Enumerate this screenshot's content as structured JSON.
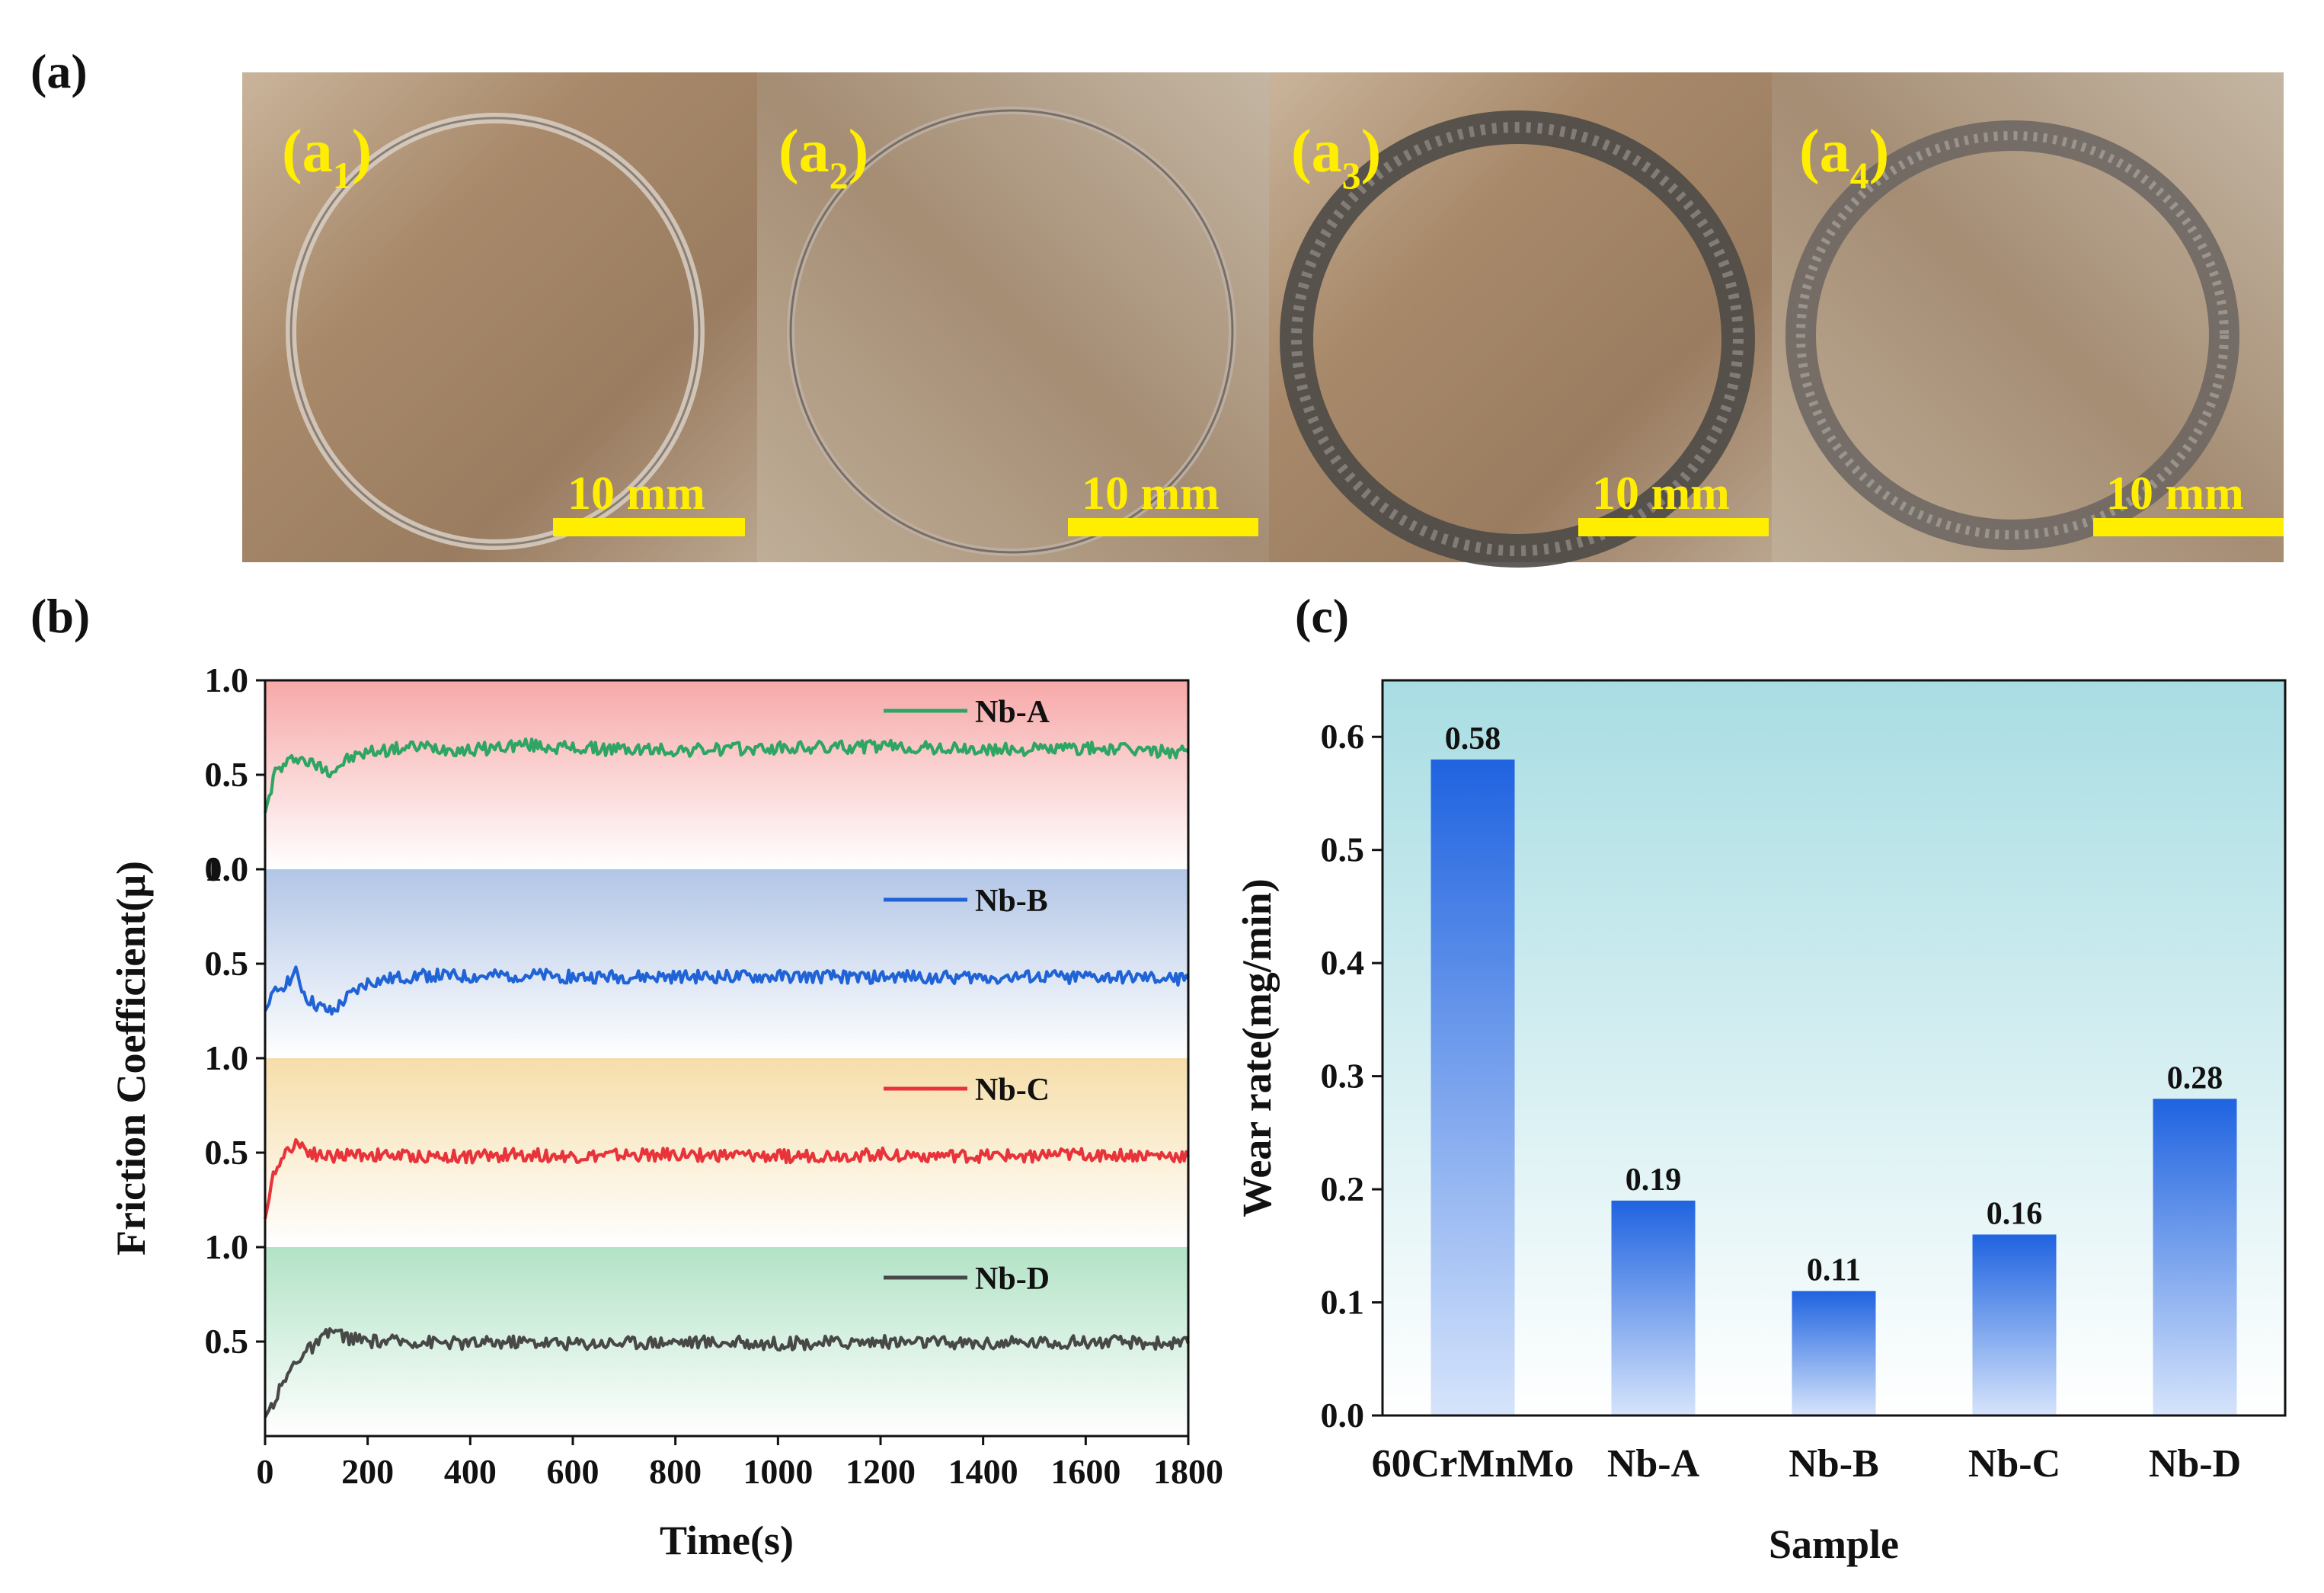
{
  "panels": {
    "a": {
      "letter": "(a)",
      "images": [
        {
          "label": "(a",
          "sub": "1",
          "close": ")",
          "scale": "10 mm",
          "ring": "thin"
        },
        {
          "label": "(a",
          "sub": "2",
          "close": ")",
          "scale": "10 mm",
          "ring": "thin"
        },
        {
          "label": "(a",
          "sub": "3",
          "close": ")",
          "scale": "10 mm",
          "ring": "thick"
        },
        {
          "label": "(a",
          "sub": "4",
          "close": ")",
          "scale": "10 mm",
          "ring": "thick"
        }
      ]
    },
    "b": {
      "letter": "(b)"
    },
    "c": {
      "letter": "(c)"
    }
  },
  "chart_data": [
    {
      "type": "line",
      "xlabel": "Time(s)",
      "ylabel": "Friction Coefficient(μ)",
      "xlim": [
        0,
        1800
      ],
      "xticks": [
        "0",
        "200",
        "400",
        "600",
        "800",
        "1000",
        "1200",
        "1400",
        "1600",
        "1800"
      ],
      "yticks": [
        "0.0",
        "0.5",
        "1.0"
      ],
      "band_ylim": [
        0,
        1.0
      ],
      "series": [
        {
          "name": "Nb-A",
          "color": "#2ea563",
          "band_color": "#f7a8a8",
          "x": [
            0,
            20,
            40,
            60,
            80,
            100,
            130,
            160,
            200,
            300,
            400,
            500,
            600,
            800,
            1000,
            1200,
            1400,
            1600,
            1800
          ],
          "y": [
            0.3,
            0.52,
            0.55,
            0.6,
            0.57,
            0.55,
            0.52,
            0.58,
            0.62,
            0.65,
            0.63,
            0.66,
            0.64,
            0.63,
            0.64,
            0.65,
            0.63,
            0.64,
            0.62
          ]
        },
        {
          "name": "Nb-B",
          "color": "#1f63d6",
          "band_color": "#b2c6e6",
          "x": [
            0,
            20,
            40,
            60,
            80,
            100,
            130,
            160,
            200,
            300,
            400,
            500,
            600,
            800,
            1000,
            1200,
            1400,
            1600,
            1800
          ],
          "y": [
            0.25,
            0.35,
            0.4,
            0.45,
            0.32,
            0.28,
            0.24,
            0.32,
            0.4,
            0.44,
            0.43,
            0.44,
            0.43,
            0.43,
            0.43,
            0.43,
            0.43,
            0.43,
            0.42
          ]
        },
        {
          "name": "Nb-C",
          "color": "#e8333a",
          "band_color": "#f6deaa",
          "x": [
            0,
            20,
            40,
            60,
            80,
            100,
            130,
            160,
            200,
            300,
            400,
            500,
            600,
            800,
            1000,
            1200,
            1400,
            1600,
            1800
          ],
          "y": [
            0.15,
            0.42,
            0.5,
            0.56,
            0.52,
            0.49,
            0.48,
            0.49,
            0.49,
            0.48,
            0.48,
            0.49,
            0.48,
            0.49,
            0.48,
            0.49,
            0.48,
            0.49,
            0.48
          ]
        },
        {
          "name": "Nb-D",
          "color": "#484848",
          "band_color": "#b2e3c6",
          "x": [
            0,
            20,
            40,
            60,
            80,
            100,
            130,
            160,
            200,
            300,
            400,
            500,
            600,
            800,
            1000,
            1200,
            1400,
            1600,
            1800
          ],
          "y": [
            0.1,
            0.2,
            0.3,
            0.4,
            0.45,
            0.48,
            0.56,
            0.52,
            0.5,
            0.5,
            0.49,
            0.5,
            0.49,
            0.5,
            0.49,
            0.5,
            0.49,
            0.5,
            0.49
          ]
        }
      ]
    },
    {
      "type": "bar",
      "xlabel": "Sample",
      "ylabel": "Wear rate(mg/min)",
      "ylim": [
        0,
        0.65
      ],
      "yticks": [
        "0.0",
        "0.1",
        "0.2",
        "0.3",
        "0.4",
        "0.5",
        "0.6"
      ],
      "categories": [
        "60CrMnMo",
        "Nb-A",
        "Nb-B",
        "Nb-C",
        "Nb-D"
      ],
      "values": [
        0.58,
        0.19,
        0.11,
        0.16,
        0.28
      ],
      "value_labels": [
        "0.58",
        "0.19",
        "0.11",
        "0.16",
        "0.28"
      ],
      "bar_color_top": "#1f63e0",
      "bar_color_bottom": "#d6e4fb",
      "background_top": "#a8dde3",
      "background_bottom": "#ffffff"
    }
  ]
}
